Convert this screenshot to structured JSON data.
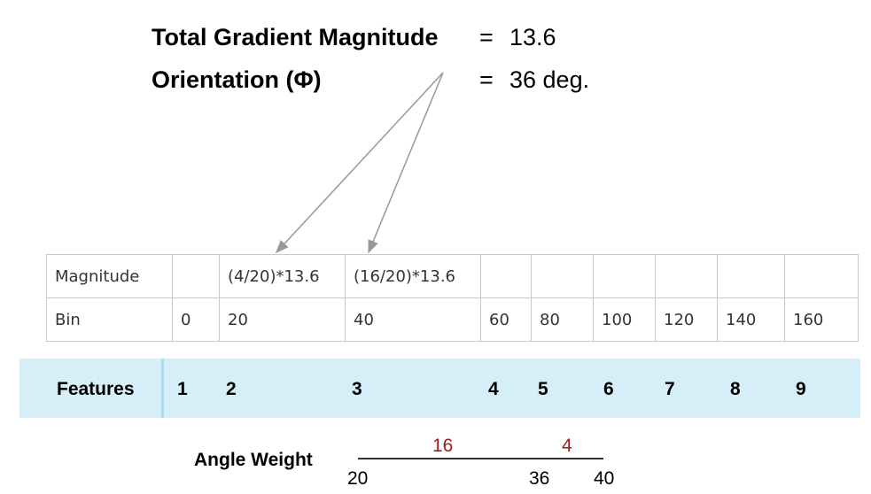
{
  "header": {
    "magnitude_label": "Total Gradient Magnitude",
    "magnitude_equals": "=",
    "magnitude_value": "13.6",
    "orientation_label": "Orientation (Φ)",
    "orientation_equals": "=",
    "orientation_value": "36 deg."
  },
  "table": {
    "rows": [
      {
        "label": "Magnitude",
        "cells": [
          "",
          "(4/20)*13.6",
          "(16/20)*13.6",
          "",
          "",
          "",
          "",
          "",
          ""
        ]
      },
      {
        "label": "Bin",
        "cells": [
          "0",
          "20",
          "40",
          "60",
          "80",
          "100",
          "120",
          "140",
          "160"
        ]
      }
    ]
  },
  "features": {
    "label": "Features",
    "items": [
      "1",
      "2",
      "3",
      "4",
      "5",
      "6",
      "7",
      "8",
      "9"
    ]
  },
  "angle_weight": {
    "label": "Angle Weight",
    "weight_left": "16",
    "weight_right": "4",
    "tick_left": "20",
    "tick_mid": "36",
    "tick_right": "40"
  },
  "colors": {
    "features_band": "#d6eef8",
    "weight_text": "#9b1c1c",
    "arrow": "#999999"
  }
}
